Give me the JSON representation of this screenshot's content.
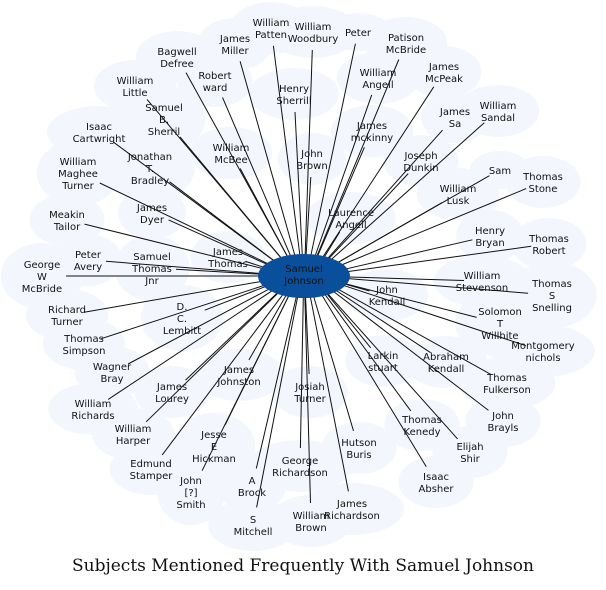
{
  "title": "Subjects Mentioned Frequently With Samuel Johnson",
  "center": {
    "label": [
      "Samuel",
      "Johnson"
    ],
    "fill": "#0a4f9c"
  },
  "colors": {
    "bubble": "#f3f7fd",
    "edge": "#111111",
    "text": "#111111"
  },
  "nodes": [
    {
      "id": "william-patten",
      "label": [
        "William",
        "Patten"
      ]
    },
    {
      "id": "william-woodbury",
      "label": [
        "William",
        "Woodbury"
      ]
    },
    {
      "id": "peter",
      "label": [
        "Peter"
      ]
    },
    {
      "id": "patison-mcbride",
      "label": [
        "Patison",
        "McBride"
      ]
    },
    {
      "id": "james-miller",
      "label": [
        "James",
        "Miller"
      ]
    },
    {
      "id": "bagwell-defree",
      "label": [
        "Bagwell",
        "Defree"
      ]
    },
    {
      "id": "robert-ward",
      "label": [
        "Robert",
        "ward"
      ]
    },
    {
      "id": "henry-sherrill",
      "label": [
        "Henry",
        "Sherrill"
      ]
    },
    {
      "id": "william-angell",
      "label": [
        "William",
        "Angell"
      ]
    },
    {
      "id": "james-mcpeak",
      "label": [
        "James",
        "McPeak"
      ]
    },
    {
      "id": "william-little",
      "label": [
        "William",
        "Little"
      ]
    },
    {
      "id": "samuel-b-sherril",
      "label": [
        "Samuel",
        "B.",
        "Sherril"
      ]
    },
    {
      "id": "james-sa",
      "label": [
        "James",
        "Sa"
      ]
    },
    {
      "id": "william-sandal",
      "label": [
        "William",
        "Sandal"
      ]
    },
    {
      "id": "isaac-cartwright",
      "label": [
        "Isaac",
        "Cartwright"
      ]
    },
    {
      "id": "james-mckinny",
      "label": [
        "James",
        "mckinny"
      ]
    },
    {
      "id": "william-mcbee",
      "label": [
        "William",
        "McBee"
      ]
    },
    {
      "id": "john-brown",
      "label": [
        "John",
        "Brown"
      ]
    },
    {
      "id": "joseph-dunkin",
      "label": [
        "Joseph",
        "Dunkin"
      ]
    },
    {
      "id": "william-maghee-turner",
      "label": [
        "William",
        "Maghee",
        "Turner"
      ]
    },
    {
      "id": "jonathan-t-bradley",
      "label": [
        "Jonathan",
        "T.",
        "Bradley"
      ]
    },
    {
      "id": "samuel-s",
      "label": [
        "Sam"
      ]
    },
    {
      "id": "thomas-stone",
      "label": [
        "Thomas",
        "Stone"
      ]
    },
    {
      "id": "william-lusk",
      "label": [
        "William",
        "Lusk"
      ]
    },
    {
      "id": "meakin-tailor",
      "label": [
        "Meakin",
        "Tailor"
      ]
    },
    {
      "id": "james-dyer",
      "label": [
        "James",
        "Dyer"
      ]
    },
    {
      "id": "laurence-angell",
      "label": [
        "Laurence",
        "Angell"
      ]
    },
    {
      "id": "henry-bryan",
      "label": [
        "Henry",
        "Bryan"
      ]
    },
    {
      "id": "thomas-robert",
      "label": [
        "Thomas",
        "Robert"
      ]
    },
    {
      "id": "peter-avery",
      "label": [
        "Peter",
        "Avery"
      ]
    },
    {
      "id": "samuel-thomas-jnr",
      "label": [
        "Samuel",
        "Thomas",
        "Jnr"
      ]
    },
    {
      "id": "james-thomas",
      "label": [
        "James",
        "Thomas"
      ]
    },
    {
      "id": "george-w-mcbride",
      "label": [
        "George",
        "W",
        "McBride"
      ]
    },
    {
      "id": "william-stevenson",
      "label": [
        "William",
        "Stevenson"
      ]
    },
    {
      "id": "thomas-s-snelling",
      "label": [
        "Thomas",
        "S",
        "Snelling"
      ]
    },
    {
      "id": "john-kendall",
      "label": [
        "John",
        "Kendall"
      ]
    },
    {
      "id": "richard-turner",
      "label": [
        "Richard",
        "Turner"
      ]
    },
    {
      "id": "d-c-lembitt",
      "label": [
        "D.",
        "C.",
        "Lembitt"
      ]
    },
    {
      "id": "solomon-t-willhite",
      "label": [
        "Solomon",
        "T",
        "Willhite"
      ]
    },
    {
      "id": "thomas-simpson",
      "label": [
        "Thomas",
        "Simpson"
      ]
    },
    {
      "id": "montgomery-nichols",
      "label": [
        "Montgomery",
        "nichols"
      ]
    },
    {
      "id": "larkin-stuart",
      "label": [
        "Larkin",
        "stuart"
      ]
    },
    {
      "id": "abraham-kendall",
      "label": [
        "Abraham",
        "Kendall"
      ]
    },
    {
      "id": "fagner-bray",
      "label": [
        "Wagner",
        "Bray"
      ]
    },
    {
      "id": "james-johnston",
      "label": [
        "James",
        "Johnston"
      ]
    },
    {
      "id": "thomas-fulkerson",
      "label": [
        "Thomas",
        "Fulkerson"
      ]
    },
    {
      "id": "james-lourey",
      "label": [
        "James",
        "Lourey"
      ]
    },
    {
      "id": "josiah-turner",
      "label": [
        "Josiah",
        "Turner"
      ]
    },
    {
      "id": "william-richards",
      "label": [
        "William",
        "Richards"
      ]
    },
    {
      "id": "john-brayls",
      "label": [
        "John",
        "Brayls"
      ]
    },
    {
      "id": "thomas-kenedy",
      "label": [
        "Thomas",
        "Kenedy"
      ]
    },
    {
      "id": "william-harper",
      "label": [
        "William",
        "Harper"
      ]
    },
    {
      "id": "jesse-e-hickman",
      "label": [
        "Jesse",
        "E",
        "Hickman"
      ]
    },
    {
      "id": "elijah-shir",
      "label": [
        "Elijah",
        "Shir"
      ]
    },
    {
      "id": "hutson-buris",
      "label": [
        "Hutson",
        "Buris"
      ]
    },
    {
      "id": "edmund-stamper",
      "label": [
        "Edmund",
        "Stamper"
      ]
    },
    {
      "id": "george-richardson",
      "label": [
        "George",
        "Richardson"
      ]
    },
    {
      "id": "isaac-absher",
      "label": [
        "Isaac",
        "Absher"
      ]
    },
    {
      "id": "a-brock",
      "label": [
        "A",
        "Brock"
      ]
    },
    {
      "id": "john-smith",
      "label": [
        "John",
        "[?]",
        "Smith"
      ]
    },
    {
      "id": "james-richardson",
      "label": [
        "James",
        "Richardson"
      ]
    },
    {
      "id": "s-mitchell",
      "label": [
        "S",
        "Mitchell"
      ]
    },
    {
      "id": "william-brown",
      "label": [
        "William",
        "Brown"
      ]
    }
  ]
}
